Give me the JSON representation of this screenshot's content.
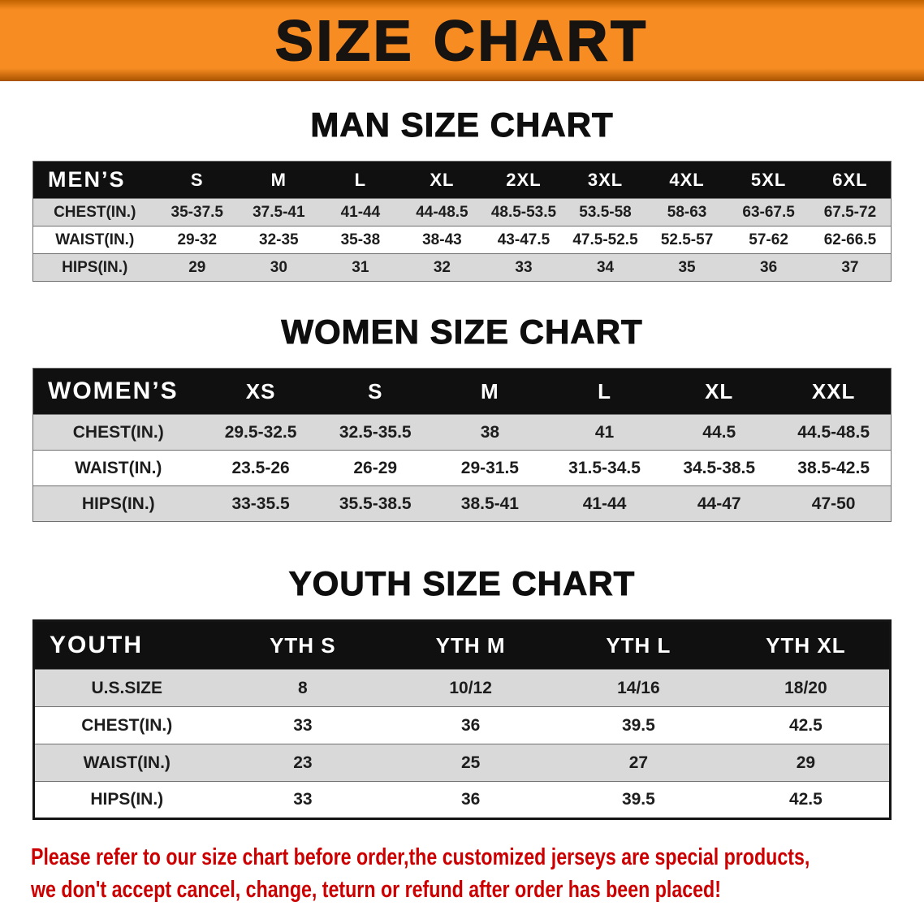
{
  "banner": {
    "title": "SIZE CHART"
  },
  "colors": {
    "banner_bg": "#f78c22",
    "header_bar": "#101010",
    "row_shade": "#d9d9d9",
    "disclaimer": "#cc0000"
  },
  "tables": [
    {
      "id": "men",
      "heading": "MAN SIZE CHART",
      "corner": "MEN’S",
      "columns": [
        "S",
        "M",
        "L",
        "XL",
        "2XL",
        "3XL",
        "4XL",
        "5XL",
        "6XL"
      ],
      "rows": [
        {
          "label": "CHEST(IN.)",
          "values": [
            "35-37.5",
            "37.5-41",
            "41-44",
            "44-48.5",
            "48.5-53.5",
            "53.5-58",
            "58-63",
            "63-67.5",
            "67.5-72"
          ]
        },
        {
          "label": "WAIST(IN.)",
          "values": [
            "29-32",
            "32-35",
            "35-38",
            "38-43",
            "43-47.5",
            "47.5-52.5",
            "52.5-57",
            "57-62",
            "62-66.5"
          ]
        },
        {
          "label": "HIPS(IN.)",
          "values": [
            "29",
            "30",
            "31",
            "32",
            "33",
            "34",
            "35",
            "36",
            "37"
          ]
        }
      ]
    },
    {
      "id": "women",
      "heading": "WOMEN SIZE CHART",
      "corner": "WOMEN’S",
      "columns": [
        "XS",
        "S",
        "M",
        "L",
        "XL",
        "XXL"
      ],
      "rows": [
        {
          "label": "CHEST(IN.)",
          "values": [
            "29.5-32.5",
            "32.5-35.5",
            "38",
            "41",
            "44.5",
            "44.5-48.5"
          ]
        },
        {
          "label": "WAIST(IN.)",
          "values": [
            "23.5-26",
            "26-29",
            "29-31.5",
            "31.5-34.5",
            "34.5-38.5",
            "38.5-42.5"
          ]
        },
        {
          "label": "HIPS(IN.)",
          "values": [
            "33-35.5",
            "35.5-38.5",
            "38.5-41",
            "41-44",
            "44-47",
            "47-50"
          ]
        }
      ]
    },
    {
      "id": "youth",
      "heading": "YOUTH SIZE CHART",
      "corner": "YOUTH",
      "columns": [
        "YTH S",
        "YTH M",
        "YTH L",
        "YTH XL"
      ],
      "rows": [
        {
          "label": "U.S.SIZE",
          "values": [
            "8",
            "10/12",
            "14/16",
            "18/20"
          ]
        },
        {
          "label": "CHEST(IN.)",
          "values": [
            "33",
            "36",
            "39.5",
            "42.5"
          ]
        },
        {
          "label": "WAIST(IN.)",
          "values": [
            "23",
            "25",
            "27",
            "29"
          ]
        },
        {
          "label": "HIPS(IN.)",
          "values": [
            "33",
            "36",
            "39.5",
            "42.5"
          ]
        }
      ]
    }
  ],
  "disclaimer": {
    "lines": [
      "Please refer to our size chart before order,the customized jerseys are special products,",
      "we don't accept cancel, change, teturn or refund after order has been placed!"
    ]
  }
}
